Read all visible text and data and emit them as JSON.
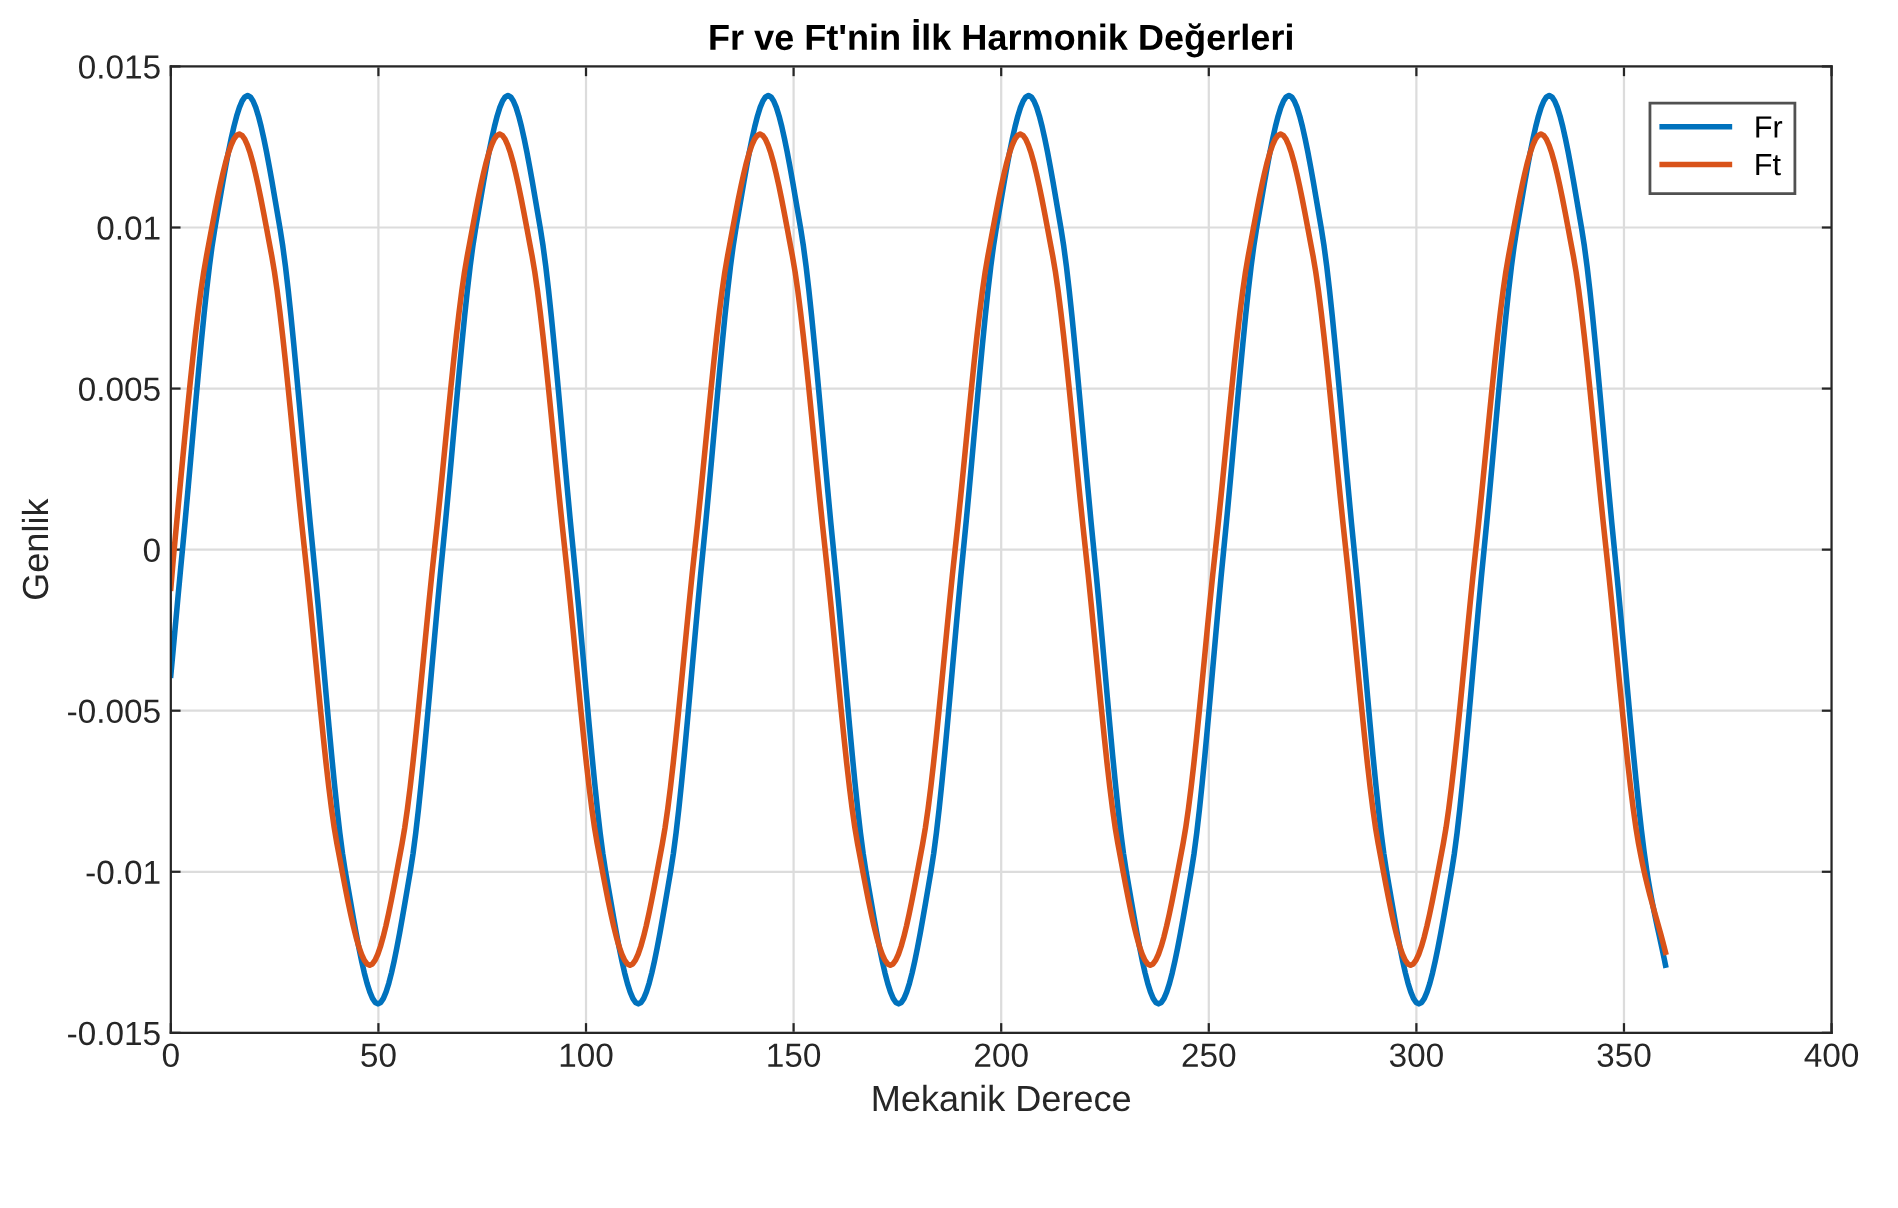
{
  "chart_data": {
    "type": "line",
    "title": "Fr ve Ft'nin İlk Harmonik Değerleri",
    "xlabel": "Mekanik Derece",
    "ylabel": "Genlik",
    "xlim": [
      0,
      400
    ],
    "xticks": [
      0,
      50,
      100,
      150,
      200,
      250,
      300,
      350,
      400
    ],
    "ylim": [
      -0.015,
      0.015
    ],
    "yticks": [
      {
        "value": -0.015,
        "label": "-0.015"
      },
      {
        "value": -0.01,
        "label": "-0.01"
      },
      {
        "value": -0.005,
        "label": "-0.005"
      },
      0,
      {
        "value": 0.005,
        "label": "0.005"
      },
      {
        "value": 0.01,
        "label": "0.01"
      },
      {
        "value": 0.015,
        "label": "0.015"
      }
    ],
    "grid": true,
    "legend": "top right",
    "line_style": "solid",
    "marker": "none",
    "series": [
      {
        "name": "Fr",
        "color": "#0072bd",
        "x": [
          0,
          2.8,
          10.6,
          18.5,
          26.3,
          34.2,
          42.0,
          49.9,
          57.7,
          65.5,
          73.4,
          81.2,
          89.0,
          96.9,
          104.7,
          112.6,
          120.4,
          128.2,
          136.1,
          143.9,
          151.7,
          159.6,
          167.4,
          175.3,
          183.1,
          190.9,
          198.8,
          206.6,
          214.4,
          222.3,
          230.1,
          237.9,
          245.8,
          253.6,
          261.5,
          269.3,
          277.1,
          285.0,
          292.8,
          300.6,
          308.5,
          316.3,
          324.2,
          332.0,
          339.8,
          347.7,
          355.5,
          360
        ],
        "values": [
          -0.0039,
          0,
          0.00997,
          0.0141,
          0.00997,
          0,
          -0.00997,
          -0.0141,
          -0.00997,
          0,
          0.00997,
          0.0141,
          0.00997,
          0,
          -0.00997,
          -0.0141,
          -0.00997,
          0,
          0.00997,
          0.0141,
          0.00997,
          0,
          -0.00997,
          -0.0141,
          -0.00997,
          0,
          0.00997,
          0.0141,
          0.00997,
          0,
          -0.00997,
          -0.0141,
          -0.00997,
          0,
          0.00997,
          0.0141,
          0.00997,
          0,
          -0.00997,
          -0.0141,
          -0.00997,
          0,
          0.00997,
          0.0141,
          0.00997,
          0,
          -0.00997,
          -0.0129
        ]
      },
      {
        "name": "Ft",
        "color": "#d95319",
        "x": [
          0,
          0.8,
          8.6,
          16.5,
          24.3,
          32.2,
          40.0,
          47.9,
          55.7,
          63.5,
          71.4,
          79.2,
          87.0,
          94.9,
          102.7,
          110.6,
          118.4,
          126.2,
          134.1,
          141.9,
          149.7,
          157.6,
          165.4,
          173.3,
          181.1,
          188.9,
          196.8,
          204.6,
          212.4,
          220.3,
          228.1,
          235.9,
          243.8,
          251.6,
          259.5,
          267.3,
          275.1,
          283.0,
          290.8,
          298.6,
          306.5,
          314.3,
          322.2,
          330.0,
          337.8,
          345.7,
          353.5,
          360
        ],
        "values": [
          -0.0012,
          0,
          0.00912,
          0.0129,
          0.00912,
          0,
          -0.00912,
          -0.0129,
          -0.00912,
          0,
          0.00912,
          0.0129,
          0.00912,
          0,
          -0.00912,
          -0.0129,
          -0.00912,
          0,
          0.00912,
          0.0129,
          0.00912,
          0,
          -0.00912,
          -0.0129,
          -0.00912,
          0,
          0.00912,
          0.0129,
          0.00912,
          0,
          -0.00912,
          -0.0129,
          -0.00912,
          0,
          0.00912,
          0.0129,
          0.00912,
          0,
          -0.00912,
          -0.0129,
          -0.00912,
          0,
          0.00912,
          0.0129,
          0.00912,
          0,
          -0.00912,
          -0.0125
        ]
      }
    ]
  }
}
